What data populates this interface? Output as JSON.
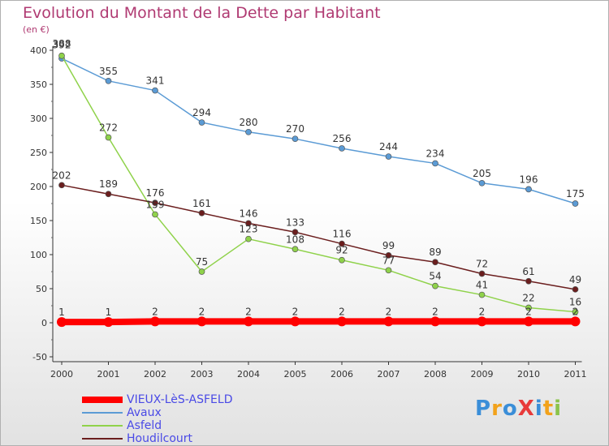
{
  "chart_title": "Evolution du Montant de la Dette par Habitant",
  "unit": "(en €)",
  "logo": {
    "text": "ProXiti",
    "colors": [
      "#3b8ed8",
      "#f2a21b",
      "#3b8ed8",
      "#e83a3a",
      "#3b8ed8",
      "#f2a21b",
      "#8bc34a"
    ]
  },
  "chart_data": {
    "type": "line",
    "title": "Evolution du Montant de la Dette par Habitant",
    "ylabel": "(en €)",
    "xlabel": "",
    "categories": [
      "2000",
      "2001",
      "2002",
      "2003",
      "2004",
      "2005",
      "2006",
      "2007",
      "2008",
      "2009",
      "2010",
      "2011"
    ],
    "ylim": [
      -50,
      400
    ],
    "yticks": [
      -50,
      0,
      50,
      100,
      150,
      200,
      250,
      300,
      350,
      400
    ],
    "grid": false,
    "legend_position": "bottom-left",
    "series": [
      {
        "name": "VIEUX-LèS-ASFELD",
        "color": "#ff0000",
        "values": [
          1,
          1,
          2,
          2,
          2,
          2,
          2,
          2,
          2,
          2,
          2,
          2
        ],
        "labels": [
          "1",
          "1",
          "2",
          "2",
          "2",
          "2",
          "2",
          "2",
          "2",
          "2",
          "2",
          "2"
        ]
      },
      {
        "name": "Avaux",
        "color": "#5b9bd5",
        "values": [
          388,
          355,
          341,
          294,
          280,
          270,
          256,
          244,
          234,
          205,
          196,
          175
        ],
        "labels": [
          "388",
          "355",
          "341",
          "294",
          "280",
          "270",
          "256",
          "244",
          "234",
          "205",
          "196",
          "175"
        ]
      },
      {
        "name": "Asfeld",
        "color": "#8fd24a",
        "values": [
          392,
          272,
          159,
          75,
          123,
          108,
          92,
          77,
          54,
          41,
          22,
          16
        ],
        "labels": [
          "392",
          "272",
          "159",
          "75",
          "123",
          "108",
          "92",
          "77",
          "54",
          "41",
          "22",
          "16"
        ]
      },
      {
        "name": "Houdilcourt",
        "color": "#6b1e1e",
        "values": [
          202,
          189,
          176,
          161,
          146,
          133,
          116,
          99,
          89,
          72,
          61,
          49
        ],
        "labels": [
          "202",
          "189",
          "176",
          "161",
          "146",
          "133",
          "116",
          "99",
          "89",
          "72",
          "61",
          "49"
        ]
      }
    ]
  }
}
